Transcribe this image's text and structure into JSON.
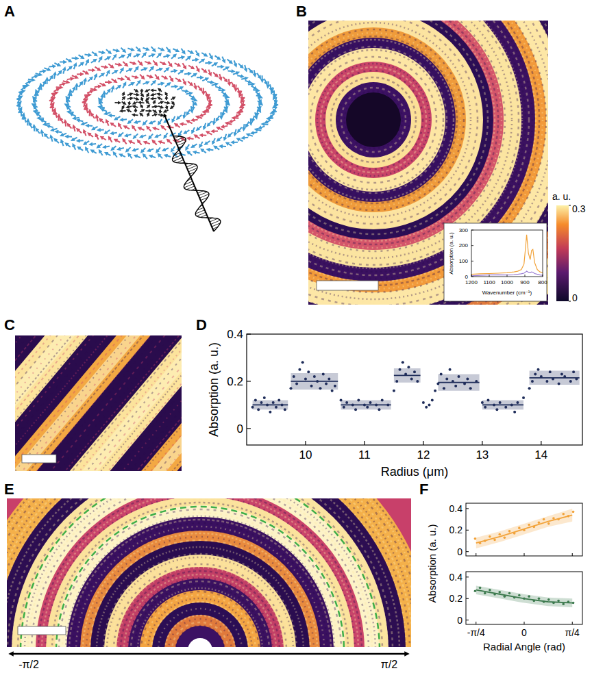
{
  "figure": {
    "panel_letters": [
      "A",
      "B",
      "C",
      "D",
      "E",
      "F"
    ],
    "colorbar": {
      "label": "a. u.",
      "range": [
        0,
        0.3
      ],
      "ticks": [
        0,
        0.3
      ]
    },
    "e_axis_labels": [
      "-π/2",
      "π/2"
    ]
  },
  "chart_data": [
    {
      "type": "line",
      "x_label": "Wavenumber (cm⁻¹)",
      "y_label": "Absorption (a. u.)",
      "x": [
        1200,
        1150,
        1100,
        1050,
        1000,
        960,
        940,
        920,
        905,
        895,
        890,
        880,
        870,
        862,
        855,
        845,
        830,
        815,
        800
      ],
      "xlim": [
        1200,
        800
      ],
      "xticks": [
        1200,
        1100,
        1000,
        900,
        800
      ],
      "ylim": [
        0,
        300
      ],
      "yticks": [
        0,
        100,
        200,
        300
      ],
      "series": [
        {
          "color": "#f2a33a",
          "values": [
            15,
            18,
            20,
            22,
            25,
            30,
            35,
            45,
            80,
            200,
            270,
            150,
            110,
            170,
            175,
            90,
            45,
            30,
            25
          ]
        },
        {
          "color": "#9b7fd4",
          "values": [
            5,
            8,
            10,
            12,
            10,
            12,
            15,
            18,
            22,
            30,
            35,
            28,
            25,
            30,
            28,
            20,
            15,
            10,
            8
          ]
        }
      ]
    },
    {
      "type": "scatter",
      "x_label": "Radius (μm)",
      "y_label": "Absorption (a. u.)",
      "xlim": [
        9,
        14.7
      ],
      "xticks": [
        10,
        11,
        12,
        13,
        14
      ],
      "ylim": [
        -0.07,
        0.4
      ],
      "yticks": [
        0,
        0.2,
        0.4
      ],
      "series": [
        {
          "type": "scatter",
          "color": "#1f2d5a",
          "marker": "circle",
          "x": [
            9.1,
            9.15,
            9.2,
            9.25,
            9.3,
            9.35,
            9.4,
            9.45,
            9.5,
            9.55,
            9.6,
            9.65,
            9.75,
            9.8,
            9.85,
            9.9,
            9.95,
            10.0,
            10.05,
            10.1,
            10.15,
            10.2,
            10.25,
            10.3,
            10.35,
            10.4,
            10.45,
            10.5,
            10.6,
            10.65,
            10.7,
            10.8,
            10.85,
            10.9,
            11.0,
            11.05,
            11.1,
            11.2,
            11.25,
            11.3,
            11.4,
            11.5,
            11.55,
            11.6,
            11.65,
            11.7,
            11.75,
            11.8,
            11.85,
            11.9,
            12.0,
            12.05,
            12.1,
            12.15,
            12.2,
            12.25,
            12.3,
            12.35,
            12.4,
            12.45,
            12.5,
            12.55,
            12.6,
            12.7,
            12.75,
            12.8,
            12.9,
            13.0,
            13.05,
            13.1,
            13.2,
            13.25,
            13.3,
            13.4,
            13.5,
            13.55,
            13.6,
            13.7,
            13.8,
            13.85,
            13.9,
            13.95,
            14.0,
            14.1,
            14.15,
            14.2,
            14.3,
            14.35,
            14.4,
            14.5,
            14.55,
            14.6
          ],
          "values": [
            0.09,
            0.12,
            0.08,
            0.11,
            0.13,
            0.1,
            0.07,
            0.11,
            0.09,
            0.12,
            0.1,
            0.08,
            0.17,
            0.22,
            0.19,
            0.25,
            0.28,
            0.21,
            0.24,
            0.18,
            0.22,
            0.2,
            0.17,
            0.23,
            0.19,
            0.21,
            0.16,
            0.18,
            0.12,
            0.09,
            0.11,
            0.1,
            0.08,
            0.12,
            0.1,
            0.09,
            0.11,
            0.1,
            0.08,
            0.12,
            0.1,
            0.16,
            0.2,
            0.25,
            0.28,
            0.23,
            0.26,
            0.21,
            0.24,
            0.2,
            0.11,
            0.09,
            0.1,
            0.12,
            0.16,
            0.19,
            0.23,
            0.17,
            0.21,
            0.25,
            0.2,
            0.18,
            0.22,
            0.19,
            0.21,
            0.17,
            0.2,
            0.11,
            0.09,
            0.12,
            0.1,
            0.08,
            0.11,
            0.09,
            0.1,
            0.07,
            0.11,
            0.13,
            0.17,
            0.2,
            0.23,
            0.25,
            0.22,
            0.2,
            0.24,
            0.21,
            0.19,
            0.23,
            0.22,
            0.2,
            0.24,
            0.21
          ]
        },
        {
          "type": "line",
          "color": "#1f2d5a",
          "line_style": "solid",
          "x": [
            9.1,
            9.7,
            9.72,
            9.75,
            10.55,
            10.58,
            10.6,
            11.45,
            11.48,
            11.5,
            11.95,
            11.98,
            12.25,
            12.95,
            12.97,
            13.0,
            13.7,
            13.75,
            13.8,
            14.65
          ],
          "values": [
            0.1,
            0.1,
            null,
            0.2,
            0.2,
            null,
            0.1,
            0.1,
            null,
            0.225,
            0.225,
            null,
            0.195,
            0.195,
            null,
            0.1,
            0.1,
            null,
            0.215,
            0.215
          ],
          "errors": [
            0.02,
            0.02,
            null,
            0.035,
            0.035,
            null,
            0.02,
            0.02,
            null,
            0.03,
            0.03,
            null,
            0.035,
            0.035,
            null,
            0.02,
            0.02,
            null,
            0.03,
            0.03
          ]
        }
      ]
    },
    {
      "type": "scatter",
      "y_label": "Absorption (a. u.)",
      "tick_labels": "y",
      "xlim": [
        -0.95,
        0.95
      ],
      "xticks": [
        {
          "value": -0.785,
          "label": "-π/4"
        },
        0,
        {
          "value": 0.785,
          "label": "π/4"
        }
      ],
      "ylim": [
        -0.04,
        0.45
      ],
      "yticks": [
        0,
        0.2,
        0.4
      ],
      "series": [
        {
          "type": "scatter",
          "color": "#f2a33a",
          "marker": "circle",
          "x": [
            -0.8,
            -0.72,
            -0.64,
            -0.56,
            -0.48,
            -0.4,
            -0.32,
            -0.24,
            -0.16,
            -0.08,
            0,
            0.08,
            0.16,
            0.24,
            0.32,
            0.4,
            0.48,
            0.56,
            0.64,
            0.72,
            0.8
          ],
          "values": [
            0.12,
            0.08,
            0.1,
            0.14,
            0.11,
            0.16,
            0.13,
            0.19,
            0.17,
            0.22,
            0.2,
            0.25,
            0.23,
            0.27,
            0.3,
            0.26,
            0.31,
            0.3,
            0.35,
            0.33,
            0.37
          ]
        },
        {
          "type": "line",
          "color": "#f2a33a",
          "line_style": "solid",
          "x": [
            -0.785,
            -0.39,
            0,
            0.39,
            0.785
          ],
          "values": [
            0.08,
            0.14,
            0.21,
            0.28,
            0.34
          ],
          "errors": [
            0.05,
            0.05,
            0.05,
            0.05,
            0.06
          ]
        }
      ]
    },
    {
      "type": "scatter",
      "x_label": "Radial Angle (rad)",
      "xlim": [
        -0.95,
        0.95
      ],
      "xticks": [
        {
          "value": -0.785,
          "label": "-π/4"
        },
        0,
        {
          "value": 0.785,
          "label": "π/4"
        }
      ],
      "ylim": [
        -0.04,
        0.45
      ],
      "yticks": [
        0,
        0.2,
        0.4
      ],
      "series": [
        {
          "type": "scatter",
          "color": "#3d7a4e",
          "marker": "circle",
          "x": [
            -0.8,
            -0.72,
            -0.64,
            -0.56,
            -0.48,
            -0.4,
            -0.32,
            -0.24,
            -0.16,
            -0.08,
            0,
            0.08,
            0.16,
            0.24,
            0.32,
            0.4,
            0.48,
            0.56,
            0.64,
            0.72,
            0.8
          ],
          "values": [
            0.27,
            0.3,
            0.25,
            0.28,
            0.24,
            0.26,
            0.22,
            0.25,
            0.21,
            0.23,
            0.2,
            0.22,
            0.18,
            0.2,
            0.17,
            0.19,
            0.16,
            0.18,
            0.15,
            0.17,
            0.16
          ]
        },
        {
          "type": "line",
          "color": "#3d7a4e",
          "line_style": "solid",
          "x": [
            -0.785,
            -0.39,
            0,
            0.39,
            0.785
          ],
          "values": [
            0.28,
            0.24,
            0.2,
            0.17,
            0.16
          ],
          "errors": [
            0.04,
            0.04,
            0.04,
            0.04,
            0.04
          ]
        }
      ]
    }
  ]
}
